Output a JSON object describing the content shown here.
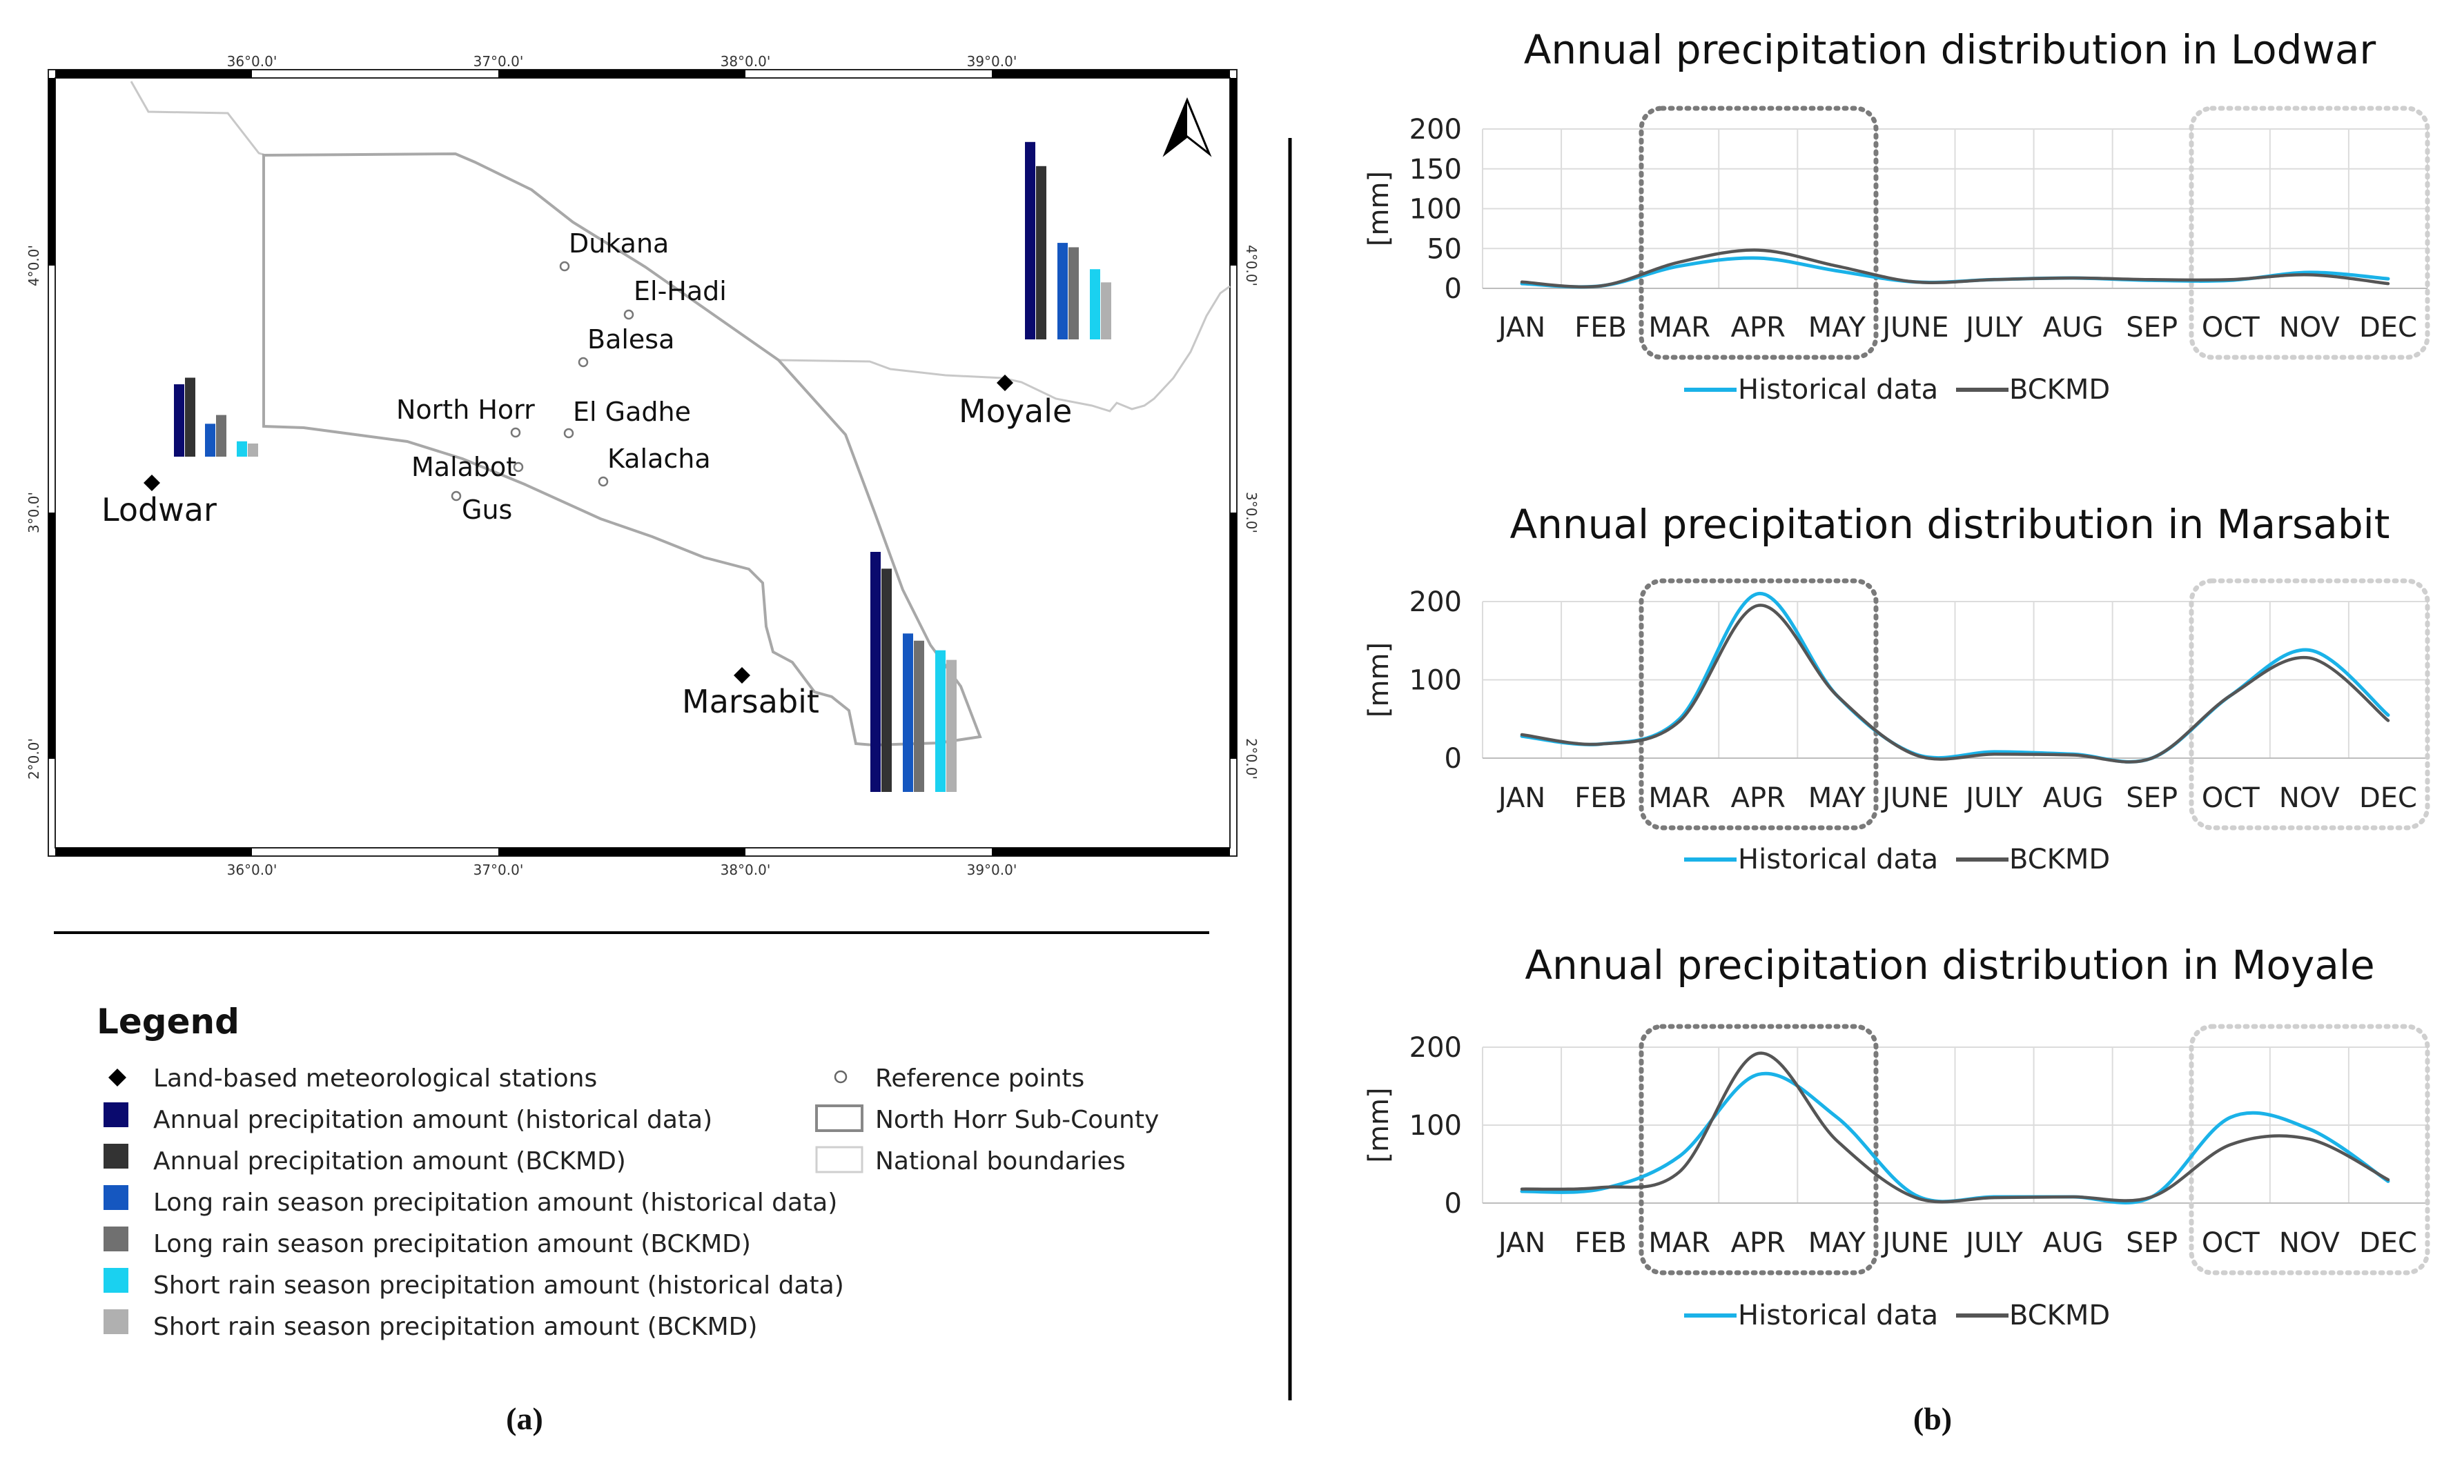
{
  "panel_labels": {
    "a": "(a)",
    "b": "(b)"
  },
  "colors": {
    "annual_hist": "#0a0a6e",
    "annual_bckmd": "#333333",
    "long_hist": "#1557c0",
    "long_bckmd": "#707070",
    "short_hist": "#1ad1f0",
    "short_bckmd": "#b0b0b0",
    "line_hist": "#1ab2e8",
    "line_bckmd": "#555555"
  },
  "map": {
    "top_ticks": [
      "36°0.0'",
      "37°0.0'",
      "38°0.0'",
      "39°0.0'"
    ],
    "bottom_ticks": [
      "36°0.0'",
      "37°0.0'",
      "38°0.0'",
      "39°0.0'"
    ],
    "left_ticks": [
      "4°0.0'",
      "3°0.0'",
      "2°0.0'"
    ],
    "right_ticks": [
      "4°0.0'",
      "3°0.0'",
      "2°0.0'"
    ],
    "stations": [
      {
        "name": "Lodwar",
        "bars": [
          0.33,
          0.36,
          0.15,
          0.19,
          0.07,
          0.06
        ]
      },
      {
        "name": "Moyale",
        "bars": [
          0.9,
          0.79,
          0.44,
          0.42,
          0.32,
          0.26
        ]
      },
      {
        "name": "Marsabit",
        "bars": [
          1.0,
          0.93,
          0.66,
          0.63,
          0.59,
          0.55
        ]
      }
    ],
    "reference_points": [
      "Dukana",
      "El-Hadi",
      "Balesa",
      "North Horr",
      "El Gadhe",
      "Malabot",
      "Kalacha",
      "Gus"
    ]
  },
  "legend": {
    "title": "Legend",
    "left_items": [
      {
        "symbol": "diamond",
        "color_key": "",
        "label": "Land-based meteorological stations"
      },
      {
        "symbol": "square",
        "color_key": "annual_hist",
        "label": "Annual precipitation amount (historical data)"
      },
      {
        "symbol": "square",
        "color_key": "annual_bckmd",
        "label": "Annual precipitation amount (BCKMD)"
      },
      {
        "symbol": "square",
        "color_key": "long_hist",
        "label": "Long rain season precipitation amount (historical data)"
      },
      {
        "symbol": "square",
        "color_key": "long_bckmd",
        "label": "Long rain season precipitation amount (BCKMD)"
      },
      {
        "symbol": "square",
        "color_key": "short_hist",
        "label": "Short rain season precipitation amount (historical data)"
      },
      {
        "symbol": "square",
        "color_key": "short_bckmd",
        "label": "Short rain season precipitation amount (BCKMD)"
      }
    ],
    "right_items": [
      {
        "symbol": "circle",
        "label": "Reference points"
      },
      {
        "symbol": "outline-dark",
        "label": "North Horr Sub-County"
      },
      {
        "symbol": "outline-light",
        "label": "National boundaries"
      }
    ]
  },
  "chart_data": [
    {
      "type": "line",
      "title": "Annual precipitation distribution in Lodwar",
      "ylabel": "[mm]",
      "ylim": [
        0,
        200
      ],
      "yticks": [
        0,
        50,
        100,
        150,
        200
      ],
      "categories": [
        "JAN",
        "FEB",
        "MAR",
        "APR",
        "MAY",
        "JUNE",
        "JULY",
        "AUG",
        "SEP",
        "OCT",
        "NOV",
        "DEC"
      ],
      "series": [
        {
          "name": "Historical data",
          "color_key": "line_hist",
          "values": [
            6,
            3,
            28,
            38,
            22,
            8,
            11,
            13,
            10,
            10,
            20,
            12
          ]
        },
        {
          "name": "BCKMD",
          "color_key": "line_bckmd",
          "values": [
            8,
            3,
            33,
            48,
            28,
            8,
            11,
            13,
            11,
            11,
            17,
            6
          ]
        }
      ]
    },
    {
      "type": "line",
      "title": "Annual precipitation distribution in Marsabit",
      "ylabel": "[mm]",
      "ylim": [
        0,
        200
      ],
      "yticks": [
        0,
        100,
        200
      ],
      "categories": [
        "JAN",
        "FEB",
        "MAR",
        "APR",
        "MAY",
        "JUNE",
        "JULY",
        "AUG",
        "SEP",
        "OCT",
        "NOV",
        "DEC"
      ],
      "series": [
        {
          "name": "Historical data",
          "color_key": "line_hist",
          "values": [
            28,
            18,
            50,
            210,
            80,
            5,
            8,
            5,
            0,
            80,
            138,
            55
          ]
        },
        {
          "name": "BCKMD",
          "color_key": "line_bckmd",
          "values": [
            30,
            18,
            47,
            195,
            80,
            4,
            5,
            4,
            0,
            80,
            128,
            48
          ]
        }
      ]
    },
    {
      "type": "line",
      "title": "Annual precipitation distribution in Moyale",
      "ylabel": "[mm]",
      "ylim": [
        0,
        200
      ],
      "yticks": [
        0,
        100,
        200
      ],
      "categories": [
        "JAN",
        "FEB",
        "MAR",
        "APR",
        "MAY",
        "JUNE",
        "JULY",
        "AUG",
        "SEP",
        "OCT",
        "NOV",
        "DEC"
      ],
      "series": [
        {
          "name": "Historical data",
          "color_key": "line_hist",
          "values": [
            15,
            18,
            60,
            165,
            110,
            10,
            8,
            8,
            8,
            110,
            95,
            28
          ]
        },
        {
          "name": "BCKMD",
          "color_key": "line_bckmd",
          "values": [
            18,
            20,
            40,
            192,
            80,
            7,
            7,
            8,
            8,
            75,
            82,
            30
          ]
        }
      ]
    }
  ]
}
